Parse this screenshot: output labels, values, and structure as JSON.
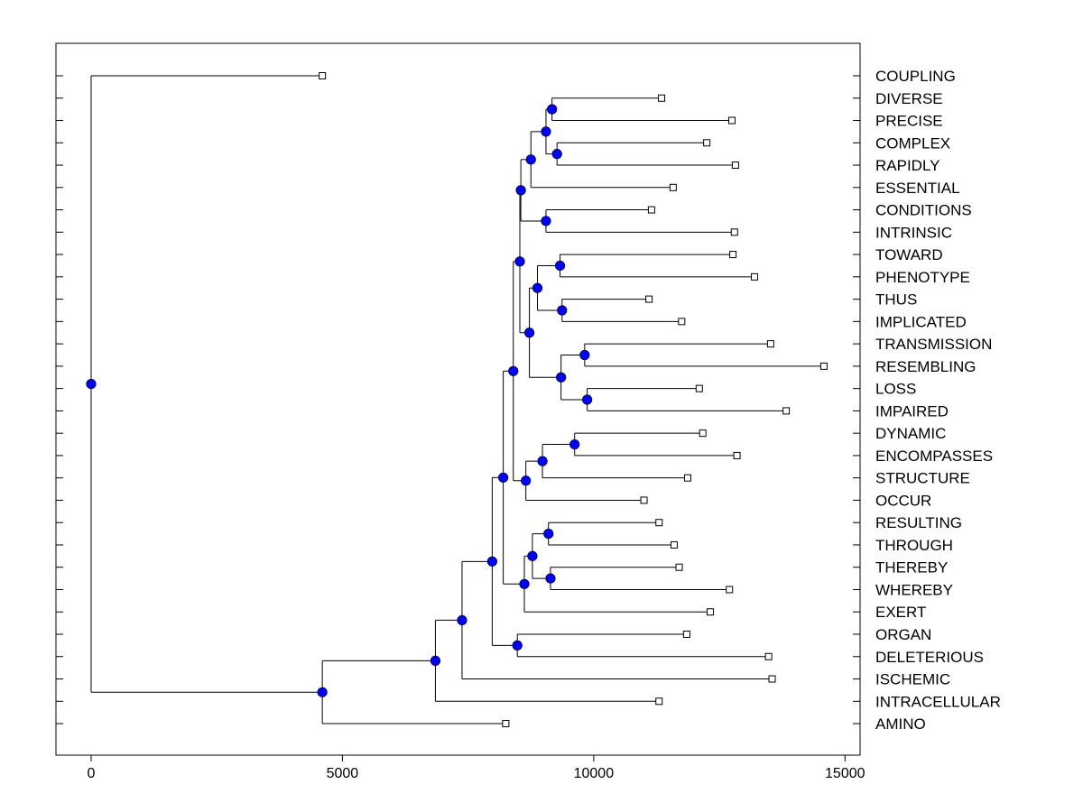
{
  "chart_data": {
    "type": "dendrogram",
    "orientation": "horizontal",
    "title": "",
    "xlabel": "",
    "ylabel": "",
    "xlim": [
      -700,
      15300
    ],
    "x_ticks": [
      0,
      5000,
      10000,
      15000
    ],
    "x_tick_labels": [
      "0",
      "5000",
      "10000",
      "15000"
    ],
    "grid": false,
    "node_color": "#0000ff",
    "leaves": [
      {
        "label": "COUPLING",
        "x": 4600
      },
      {
        "label": "DIVERSE",
        "x": 11350
      },
      {
        "label": "PRECISE",
        "x": 12750
      },
      {
        "label": "COMPLEX",
        "x": 12250
      },
      {
        "label": "RAPIDLY",
        "x": 12820
      },
      {
        "label": "ESSENTIAL",
        "x": 11580
      },
      {
        "label": "CONDITIONS",
        "x": 11150
      },
      {
        "label": "INTRINSIC",
        "x": 12800
      },
      {
        "label": "TOWARD",
        "x": 12770
      },
      {
        "label": "PHENOTYPE",
        "x": 13200
      },
      {
        "label": "THUS",
        "x": 11100
      },
      {
        "label": "IMPLICATED",
        "x": 11750
      },
      {
        "label": "TRANSMISSION",
        "x": 13520
      },
      {
        "label": "RESEMBLING",
        "x": 14580
      },
      {
        "label": "LOSS",
        "x": 12100
      },
      {
        "label": "IMPAIRED",
        "x": 13830
      },
      {
        "label": "DYNAMIC",
        "x": 12170
      },
      {
        "label": "ENCOMPASSES",
        "x": 12850
      },
      {
        "label": "STRUCTURE",
        "x": 11870
      },
      {
        "label": "OCCUR",
        "x": 11000
      },
      {
        "label": "RESULTING",
        "x": 11300
      },
      {
        "label": "THROUGH",
        "x": 11600
      },
      {
        "label": "THEREBY",
        "x": 11700
      },
      {
        "label": "WHEREBY",
        "x": 12700
      },
      {
        "label": "EXERT",
        "x": 12320
      },
      {
        "label": "ORGAN",
        "x": 11850
      },
      {
        "label": "DELETERIOUS",
        "x": 13480
      },
      {
        "label": "ISCHEMIC",
        "x": 13550
      },
      {
        "label": "INTRACELLULAR",
        "x": 11300
      },
      {
        "label": "AMINO",
        "x": 8250
      }
    ],
    "merges": [
      {
        "id": "n1",
        "height": 9170,
        "children": [
          "DIVERSE",
          "PRECISE"
        ]
      },
      {
        "id": "n2",
        "height": 9270,
        "children": [
          "COMPLEX",
          "RAPIDLY"
        ]
      },
      {
        "id": "n3",
        "height": 9050,
        "children": [
          "n1",
          "n2"
        ]
      },
      {
        "id": "n4",
        "height": 8750,
        "children": [
          "n3",
          "ESSENTIAL"
        ]
      },
      {
        "id": "n5",
        "height": 9050,
        "children": [
          "CONDITIONS",
          "INTRINSIC"
        ]
      },
      {
        "id": "n6",
        "height": 8550,
        "children": [
          "n4",
          "n5"
        ]
      },
      {
        "id": "n7",
        "height": 9330,
        "children": [
          "TOWARD",
          "PHENOTYPE"
        ]
      },
      {
        "id": "n8",
        "height": 9370,
        "children": [
          "THUS",
          "IMPLICATED"
        ]
      },
      {
        "id": "n9",
        "height": 8880,
        "children": [
          "n7",
          "n8"
        ]
      },
      {
        "id": "n10",
        "height": 9820,
        "children": [
          "TRANSMISSION",
          "RESEMBLING"
        ]
      },
      {
        "id": "n11",
        "height": 9870,
        "children": [
          "LOSS",
          "IMPAIRED"
        ]
      },
      {
        "id": "n12",
        "height": 9350,
        "children": [
          "n10",
          "n11"
        ]
      },
      {
        "id": "n13",
        "height": 8720,
        "children": [
          "n9",
          "n12"
        ]
      },
      {
        "id": "n14",
        "height": 8530,
        "children": [
          "n6",
          "n13"
        ]
      },
      {
        "id": "n15",
        "height": 9620,
        "children": [
          "DYNAMIC",
          "ENCOMPASSES"
        ]
      },
      {
        "id": "n16",
        "height": 8980,
        "children": [
          "n15",
          "STRUCTURE"
        ]
      },
      {
        "id": "n17",
        "height": 8650,
        "children": [
          "n16",
          "OCCUR"
        ]
      },
      {
        "id": "n18",
        "height": 8400,
        "children": [
          "n14",
          "n17"
        ]
      },
      {
        "id": "n19",
        "height": 9100,
        "children": [
          "RESULTING",
          "THROUGH"
        ]
      },
      {
        "id": "n20",
        "height": 9140,
        "children": [
          "THEREBY",
          "WHEREBY"
        ]
      },
      {
        "id": "n21",
        "height": 8780,
        "children": [
          "n19",
          "n20"
        ]
      },
      {
        "id": "n22",
        "height": 8620,
        "children": [
          "n21",
          "EXERT"
        ]
      },
      {
        "id": "n23",
        "height": 8200,
        "children": [
          "n18",
          "n22"
        ]
      },
      {
        "id": "n24",
        "height": 8480,
        "children": [
          "ORGAN",
          "DELETERIOUS"
        ]
      },
      {
        "id": "n25",
        "height": 7980,
        "children": [
          "n23",
          "n24"
        ]
      },
      {
        "id": "n26",
        "height": 7380,
        "children": [
          "n25",
          "ISCHEMIC"
        ]
      },
      {
        "id": "n27",
        "height": 6850,
        "children": [
          "n26",
          "INTRACELLULAR"
        ]
      },
      {
        "id": "n28",
        "height": 4600,
        "children": [
          "n27",
          "AMINO"
        ]
      },
      {
        "id": "root",
        "height": 0,
        "children": [
          "COUPLING",
          "n28"
        ]
      }
    ]
  }
}
